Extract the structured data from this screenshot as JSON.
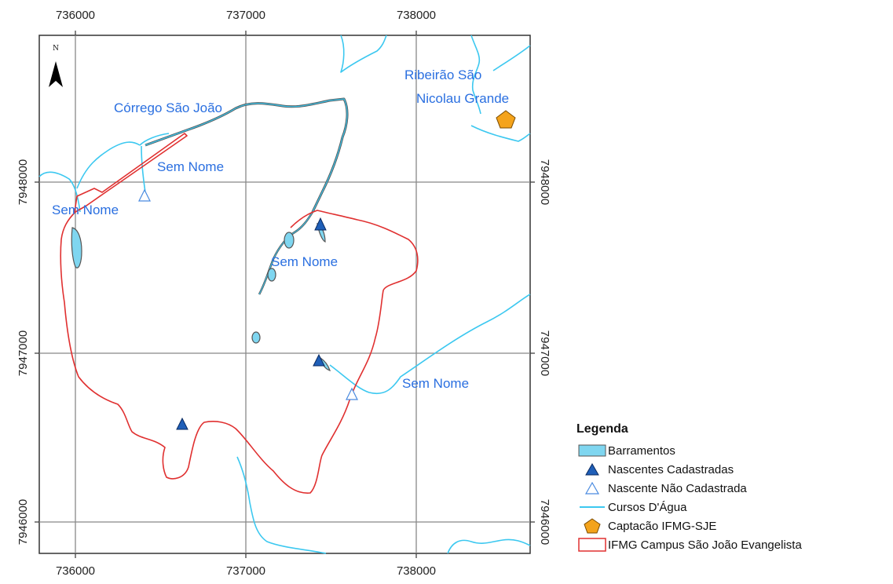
{
  "map": {
    "x_ticks_top": [
      "736000",
      "737000",
      "738000"
    ],
    "x_ticks_bottom": [
      "736000",
      "737000",
      "738000"
    ],
    "y_ticks_left": [
      "7948000",
      "7947000",
      "7946000"
    ],
    "y_ticks_right": [
      "7948000",
      "7947000",
      "7946000"
    ],
    "north_label": "N",
    "labels": {
      "corrego_sao_joao": "Córrego São João",
      "ribeirao_line1": "Ribeirão São",
      "ribeirao_line2": "Nicolau Grande",
      "sem_nome_1": "Sem Nome",
      "sem_nome_2": "Sem Nome",
      "sem_nome_3": "Sem Nome",
      "sem_nome_4": "Sem Nome"
    }
  },
  "legend": {
    "title": "Legenda",
    "items": [
      {
        "label": "Barramentos",
        "icon": "barramentos-swatch",
        "color": "#7fd6f0"
      },
      {
        "label": "Nascentes Cadastradas",
        "icon": "filled-triangle",
        "color": "#1f5fb8"
      },
      {
        "label": "Nascente Não Cadastrada",
        "icon": "hollow-triangle",
        "color": "#4a8be0"
      },
      {
        "label": "Cursos D'Água",
        "icon": "stream-line",
        "color": "#3cc8f0"
      },
      {
        "label": "Captacão IFMG-SJE",
        "icon": "orange-pentagon",
        "color": "#f4a31b"
      },
      {
        "label": "IFMG Campus São João Evangelista",
        "icon": "red-outline",
        "color": "#e03030"
      }
    ]
  },
  "colors": {
    "grid": "#888888",
    "stream": "#3cc8f0",
    "boundary": "#e03030",
    "label": "#2a6fe0",
    "water": "#7fd6f0"
  }
}
